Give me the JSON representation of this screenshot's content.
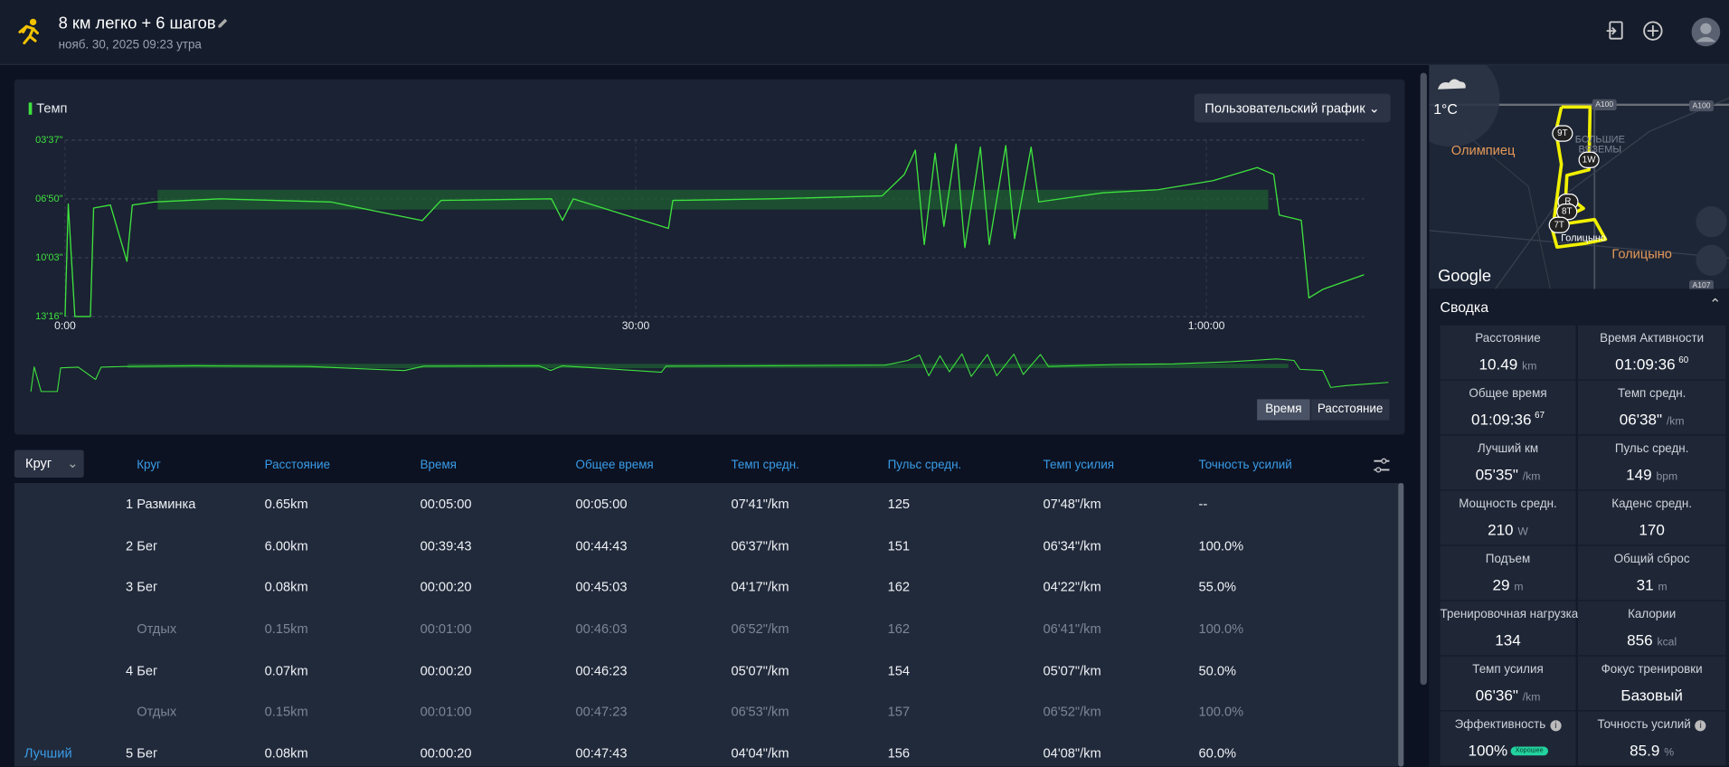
{
  "header": {
    "title": "8 км легко + 6 шагов",
    "date": "нояб. 30, 2025 09:23 утра"
  },
  "chart_data": {
    "type": "line",
    "button": "Пользовательский график",
    "x": [
      0,
      10,
      31,
      80,
      90,
      143,
      195,
      212,
      282,
      490,
      838,
      1127,
      1186,
      1534,
      1569,
      1603,
      1903,
      1917,
      2230,
      2577,
      2647,
      2682,
      2710,
      2744,
      2772,
      2810,
      2838,
      2887,
      2915,
      2967,
      2995,
      3047,
      3071,
      3273,
      3447,
      3621,
      3760,
      3812,
      3830,
      3899,
      3923,
      3969,
      4097
    ],
    "series": [
      {
        "name": "Темп",
        "color": "#3ee23e",
        "values": [
          796,
          427,
          796,
          796,
          440,
          430,
          615,
          430,
          420,
          410,
          420,
          481,
          415,
          410,
          480,
          410,
          507,
          415,
          410,
          400,
          330,
          250,
          560,
          260,
          500,
          230,
          570,
          240,
          560,
          235,
          540,
          240,
          420,
          390,
          380,
          350,
          307,
          330,
          463,
          480,
          735,
          706,
          659
        ]
      }
    ],
    "target": {
      "pace": [
        380,
        445
      ],
      "time": [
        292,
        3795
      ],
      "color": "#1e5a32"
    },
    "xlim": [
      0,
      4100
    ],
    "xticks": [
      {
        "value": 0,
        "label": "0:00"
      },
      {
        "value": 1800,
        "label": "30:00"
      },
      {
        "value": 3600,
        "label": "1:00:00"
      }
    ],
    "ylim": [
      217,
      796
    ],
    "inverted": true,
    "yticks": [
      {
        "value": 217,
        "label": "03'37\""
      },
      {
        "value": 410,
        "label": "06'50\""
      },
      {
        "value": 603,
        "label": "10'03\""
      },
      {
        "value": 796,
        "label": "13'16\""
      }
    ],
    "grid": true,
    "toggle": [
      "Время",
      "Расстояние"
    ]
  },
  "laps": {
    "dropdown": "Круг",
    "columns": [
      "Круг",
      "Расстояние",
      "Время",
      "Общее время",
      "Темп средн.",
      "Пульс средн.",
      "Темп усилия",
      "Точность усилий"
    ],
    "rows": [
      {
        "cells": [
          "1 Разминка",
          "0.65km",
          "00:05:00",
          "00:05:00",
          "07'41\"/km",
          "125",
          "07'48\"/km",
          "--"
        ]
      },
      {
        "cells": [
          "2 Бег",
          "6.00km",
          "00:39:43",
          "00:44:43",
          "06'37\"/km",
          "151",
          "06'34\"/km",
          "100.0%"
        ]
      },
      {
        "cells": [
          "3 Бег",
          "0.08km",
          "00:00:20",
          "00:45:03",
          "04'17\"/km",
          "162",
          "04'22\"/km",
          "55.0%"
        ]
      },
      {
        "cells": [
          "Отдых",
          "0.15km",
          "00:01:00",
          "00:46:03",
          "06'52\"/km",
          "162",
          "06'41\"/km",
          "100.0%"
        ],
        "rest": true
      },
      {
        "cells": [
          "4 Бег",
          "0.07km",
          "00:00:20",
          "00:46:23",
          "05'07\"/km",
          "154",
          "05'07\"/km",
          "50.0%"
        ]
      },
      {
        "cells": [
          "Отдых",
          "0.15km",
          "00:01:00",
          "00:47:23",
          "06'53\"/km",
          "157",
          "06'52\"/km",
          "100.0%"
        ],
        "rest": true
      },
      {
        "cells": [
          "5 Бег",
          "0.08km",
          "00:00:20",
          "00:47:43",
          "04'04\"/km",
          "156",
          "04'08\"/km",
          "60.0%"
        ],
        "best": "Лучший"
      }
    ]
  },
  "map": {
    "weather": "1°C",
    "attribution": "Google",
    "labels": [
      {
        "text": "Олимпиец",
        "kind": "town"
      },
      {
        "text": "БОЛЬШИЕ",
        "kind": "area"
      },
      {
        "text": "ВЯЗЕМЫ",
        "kind": "area"
      },
      {
        "text": "Голицыно",
        "kind": "town"
      },
      {
        "text": "Голицыно",
        "kind": "small"
      },
      {
        "text": "A100",
        "kind": "road"
      },
      {
        "text": "A100",
        "kind": "road"
      },
      {
        "text": "A107",
        "kind": "road"
      }
    ],
    "markers": [
      "9T",
      "1W",
      "R",
      "8T",
      "7T"
    ]
  },
  "summary": {
    "title": "Сводка",
    "items": [
      {
        "label": "Расстояние",
        "value": "10.49",
        "unit": "km"
      },
      {
        "label": "Время Активности",
        "value": "01:09:36",
        "sup": "60"
      },
      {
        "label": "Общее время",
        "value": "01:09:36",
        "sup": "67"
      },
      {
        "label": "Темп средн.",
        "value": "06'38\"",
        "unit": "/km"
      },
      {
        "label": "Лучший км",
        "value": "05'35\"",
        "unit": "/km"
      },
      {
        "label": "Пульс средн.",
        "value": "149",
        "unit": "bpm"
      },
      {
        "label": "Мощность средн.",
        "value": "210",
        "unit": "W"
      },
      {
        "label": "Каденс средн.",
        "value": "170"
      },
      {
        "label": "Подъем",
        "value": "29",
        "unit": "m"
      },
      {
        "label": "Общий сброс",
        "value": "31",
        "unit": "m"
      },
      {
        "label": "Тренировочная нагрузка",
        "value": "134"
      },
      {
        "label": "Калории",
        "value": "856",
        "unit": "kcal"
      },
      {
        "label": "Темп усилия",
        "value": "06'36\"",
        "unit": "/km"
      },
      {
        "label": "Фокус тренировки",
        "value": "Базовый"
      },
      {
        "label": "Эффективность",
        "value": "100%",
        "badge": "Хорошее",
        "info": true
      },
      {
        "label": "Точность усилий",
        "value": "85.9",
        "unit": "%",
        "info": true
      }
    ]
  }
}
